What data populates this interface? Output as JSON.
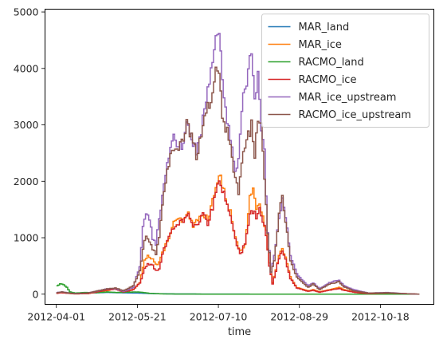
{
  "chart_data": {
    "type": "line",
    "step": true,
    "title": "",
    "xlabel": "time",
    "ylabel": "",
    "x_start": "2012-04-01",
    "x_step_days": 1,
    "xlim": [
      "2012-03-25",
      "2012-11-20"
    ],
    "ylim": [
      -180,
      5050
    ],
    "yticks": [
      0,
      1000,
      2000,
      3000,
      4000,
      5000
    ],
    "xticks": [
      {
        "date": "2012-04-01",
        "label": "2012-04-01"
      },
      {
        "date": "2012-05-21",
        "label": "2012-05-21"
      },
      {
        "date": "2012-07-10",
        "label": "2012-07-10"
      },
      {
        "date": "2012-08-29",
        "label": "2012-08-29"
      },
      {
        "date": "2012-10-18",
        "label": "2012-10-18"
      }
    ],
    "legend_position": "top-right",
    "grid": false,
    "series": [
      {
        "name": "MAR_land",
        "color": "#1f77b4",
        "knots": [
          [
            "2012-04-01",
            20
          ],
          [
            "2012-04-04",
            40
          ],
          [
            "2012-04-07",
            25
          ],
          [
            "2012-04-11",
            15
          ],
          [
            "2012-04-20",
            20
          ],
          [
            "2012-05-01",
            30
          ],
          [
            "2012-05-10",
            25
          ],
          [
            "2012-05-20",
            20
          ],
          [
            "2012-05-30",
            10
          ],
          [
            "2012-06-10",
            5
          ],
          [
            "2012-07-01",
            2
          ],
          [
            "2012-08-01",
            1
          ],
          [
            "2012-09-01",
            1
          ],
          [
            "2012-10-01",
            0
          ],
          [
            "2012-11-10",
            0
          ]
        ]
      },
      {
        "name": "MAR_ice",
        "color": "#ff7f0e",
        "knots": [
          [
            "2012-04-01",
            20
          ],
          [
            "2012-04-03",
            30
          ],
          [
            "2012-04-08",
            15
          ],
          [
            "2012-04-12",
            5
          ],
          [
            "2012-04-20",
            10
          ],
          [
            "2012-05-01",
            60
          ],
          [
            "2012-05-07",
            90
          ],
          [
            "2012-05-12",
            40
          ],
          [
            "2012-05-18",
            80
          ],
          [
            "2012-05-22",
            200
          ],
          [
            "2012-05-25",
            600
          ],
          [
            "2012-05-27",
            700
          ],
          [
            "2012-05-30",
            620
          ],
          [
            "2012-06-01",
            520
          ],
          [
            "2012-06-03",
            560
          ],
          [
            "2012-06-06",
            800
          ],
          [
            "2012-06-09",
            1000
          ],
          [
            "2012-06-12",
            1250
          ],
          [
            "2012-06-15",
            1320
          ],
          [
            "2012-06-18",
            1300
          ],
          [
            "2012-06-21",
            1420
          ],
          [
            "2012-06-24",
            1230
          ],
          [
            "2012-06-27",
            1300
          ],
          [
            "2012-06-30",
            1450
          ],
          [
            "2012-07-03",
            1300
          ],
          [
            "2012-07-06",
            1650
          ],
          [
            "2012-07-09",
            2000
          ],
          [
            "2012-07-11",
            2060
          ],
          [
            "2012-07-14",
            1750
          ],
          [
            "2012-07-17",
            1450
          ],
          [
            "2012-07-20",
            1000
          ],
          [
            "2012-07-23",
            750
          ],
          [
            "2012-07-26",
            900
          ],
          [
            "2012-07-29",
            1750
          ],
          [
            "2012-07-31",
            1830
          ],
          [
            "2012-08-02",
            1450
          ],
          [
            "2012-08-04",
            1600
          ],
          [
            "2012-08-06",
            1350
          ],
          [
            "2012-08-08",
            1100
          ],
          [
            "2012-08-10",
            550
          ],
          [
            "2012-08-12",
            200
          ],
          [
            "2012-08-16",
            700
          ],
          [
            "2012-08-18",
            800
          ],
          [
            "2012-08-20",
            650
          ],
          [
            "2012-08-23",
            300
          ],
          [
            "2012-08-27",
            120
          ],
          [
            "2012-09-03",
            60
          ],
          [
            "2012-09-06",
            80
          ],
          [
            "2012-09-10",
            40
          ],
          [
            "2012-09-16",
            80
          ],
          [
            "2012-09-22",
            120
          ],
          [
            "2012-09-25",
            80
          ],
          [
            "2012-10-01",
            40
          ],
          [
            "2012-10-10",
            10
          ],
          [
            "2012-10-22",
            20
          ],
          [
            "2012-11-01",
            10
          ],
          [
            "2012-11-10",
            0
          ]
        ]
      },
      {
        "name": "RACMO_land",
        "color": "#2ca02c",
        "knots": [
          [
            "2012-04-01",
            150
          ],
          [
            "2012-04-03",
            180
          ],
          [
            "2012-04-05",
            170
          ],
          [
            "2012-04-07",
            120
          ],
          [
            "2012-04-09",
            40
          ],
          [
            "2012-04-12",
            20
          ],
          [
            "2012-04-18",
            30
          ],
          [
            "2012-04-25",
            25
          ],
          [
            "2012-05-02",
            40
          ],
          [
            "2012-05-08",
            30
          ],
          [
            "2012-05-14",
            35
          ],
          [
            "2012-05-21",
            40
          ],
          [
            "2012-05-28",
            15
          ],
          [
            "2012-06-05",
            5
          ],
          [
            "2012-06-15",
            2
          ],
          [
            "2012-07-01",
            1
          ],
          [
            "2012-08-01",
            1
          ],
          [
            "2012-09-01",
            0
          ],
          [
            "2012-10-01",
            0
          ],
          [
            "2012-11-10",
            0
          ]
        ]
      },
      {
        "name": "RACMO_ice",
        "color": "#d62728",
        "knots": [
          [
            "2012-04-01",
            15
          ],
          [
            "2012-04-03",
            25
          ],
          [
            "2012-04-08",
            15
          ],
          [
            "2012-04-12",
            5
          ],
          [
            "2012-04-20",
            10
          ],
          [
            "2012-05-01",
            70
          ],
          [
            "2012-05-07",
            90
          ],
          [
            "2012-05-12",
            40
          ],
          [
            "2012-05-18",
            80
          ],
          [
            "2012-05-22",
            200
          ],
          [
            "2012-05-25",
            450
          ],
          [
            "2012-05-27",
            550
          ],
          [
            "2012-05-30",
            500
          ],
          [
            "2012-06-01",
            420
          ],
          [
            "2012-06-03",
            460
          ],
          [
            "2012-06-06",
            800
          ],
          [
            "2012-06-09",
            1000
          ],
          [
            "2012-06-12",
            1200
          ],
          [
            "2012-06-15",
            1270
          ],
          [
            "2012-06-18",
            1280
          ],
          [
            "2012-06-21",
            1400
          ],
          [
            "2012-06-24",
            1180
          ],
          [
            "2012-06-27",
            1250
          ],
          [
            "2012-06-30",
            1400
          ],
          [
            "2012-07-03",
            1250
          ],
          [
            "2012-07-06",
            1550
          ],
          [
            "2012-07-09",
            1900
          ],
          [
            "2012-07-11",
            1960
          ],
          [
            "2012-07-14",
            1700
          ],
          [
            "2012-07-17",
            1400
          ],
          [
            "2012-07-20",
            960
          ],
          [
            "2012-07-23",
            700
          ],
          [
            "2012-07-26",
            900
          ],
          [
            "2012-07-29",
            1450
          ],
          [
            "2012-07-31",
            1480
          ],
          [
            "2012-08-02",
            1350
          ],
          [
            "2012-08-04",
            1480
          ],
          [
            "2012-08-06",
            1300
          ],
          [
            "2012-08-08",
            1050
          ],
          [
            "2012-08-10",
            500
          ],
          [
            "2012-08-12",
            180
          ],
          [
            "2012-08-16",
            650
          ],
          [
            "2012-08-18",
            760
          ],
          [
            "2012-08-20",
            600
          ],
          [
            "2012-08-23",
            280
          ],
          [
            "2012-08-27",
            110
          ],
          [
            "2012-09-03",
            50
          ],
          [
            "2012-09-06",
            70
          ],
          [
            "2012-09-10",
            35
          ],
          [
            "2012-09-16",
            70
          ],
          [
            "2012-09-22",
            100
          ],
          [
            "2012-09-25",
            70
          ],
          [
            "2012-10-01",
            35
          ],
          [
            "2012-10-10",
            10
          ],
          [
            "2012-10-22",
            20
          ],
          [
            "2012-11-01",
            10
          ],
          [
            "2012-11-10",
            0
          ]
        ]
      },
      {
        "name": "MAR_ice_upstream",
        "color": "#9467bd",
        "knots": [
          [
            "2012-04-01",
            30
          ],
          [
            "2012-04-04",
            40
          ],
          [
            "2012-04-08",
            20
          ],
          [
            "2012-04-12",
            10
          ],
          [
            "2012-04-20",
            20
          ],
          [
            "2012-05-01",
            90
          ],
          [
            "2012-05-07",
            100
          ],
          [
            "2012-05-12",
            50
          ],
          [
            "2012-05-18",
            120
          ],
          [
            "2012-05-22",
            500
          ],
          [
            "2012-05-24",
            1200
          ],
          [
            "2012-05-26",
            1400
          ],
          [
            "2012-05-28",
            1350
          ],
          [
            "2012-05-30",
            1000
          ],
          [
            "2012-06-01",
            900
          ],
          [
            "2012-06-03",
            1300
          ],
          [
            "2012-06-06",
            2000
          ],
          [
            "2012-06-09",
            2400
          ],
          [
            "2012-06-12",
            2800
          ],
          [
            "2012-06-14",
            2700
          ],
          [
            "2012-06-17",
            2600
          ],
          [
            "2012-06-20",
            3000
          ],
          [
            "2012-06-23",
            2800
          ],
          [
            "2012-06-26",
            2500
          ],
          [
            "2012-06-29",
            2900
          ],
          [
            "2012-07-02",
            3500
          ],
          [
            "2012-07-05",
            4000
          ],
          [
            "2012-07-08",
            4700
          ],
          [
            "2012-07-10",
            4800
          ],
          [
            "2012-07-12",
            3800
          ],
          [
            "2012-07-15",
            3000
          ],
          [
            "2012-07-18",
            2700
          ],
          [
            "2012-07-20",
            2200
          ],
          [
            "2012-07-22",
            2400
          ],
          [
            "2012-07-25",
            3500
          ],
          [
            "2012-07-28",
            4000
          ],
          [
            "2012-07-30",
            4350
          ],
          [
            "2012-08-01",
            3600
          ],
          [
            "2012-08-03",
            3800
          ],
          [
            "2012-08-05",
            3000
          ],
          [
            "2012-08-07",
            2500
          ],
          [
            "2012-08-09",
            1100
          ],
          [
            "2012-08-11",
            400
          ],
          [
            "2012-08-13",
            700
          ],
          [
            "2012-08-16",
            1300
          ],
          [
            "2012-08-18",
            1700
          ],
          [
            "2012-08-20",
            1400
          ],
          [
            "2012-08-23",
            700
          ],
          [
            "2012-08-27",
            350
          ],
          [
            "2012-09-03",
            150
          ],
          [
            "2012-09-06",
            200
          ],
          [
            "2012-09-10",
            100
          ],
          [
            "2012-09-16",
            200
          ],
          [
            "2012-09-22",
            250
          ],
          [
            "2012-09-25",
            150
          ],
          [
            "2012-10-01",
            80
          ],
          [
            "2012-10-10",
            20
          ],
          [
            "2012-10-22",
            30
          ],
          [
            "2012-11-01",
            10
          ],
          [
            "2012-11-10",
            0
          ]
        ]
      },
      {
        "name": "RACMO_ice_upstream",
        "color": "#8c564b",
        "knots": [
          [
            "2012-04-01",
            25
          ],
          [
            "2012-04-04",
            40
          ],
          [
            "2012-04-08",
            20
          ],
          [
            "2012-04-12",
            10
          ],
          [
            "2012-04-20",
            20
          ],
          [
            "2012-05-01",
            90
          ],
          [
            "2012-05-07",
            110
          ],
          [
            "2012-05-12",
            60
          ],
          [
            "2012-05-18",
            150
          ],
          [
            "2012-05-22",
            400
          ],
          [
            "2012-05-24",
            800
          ],
          [
            "2012-05-26",
            1050
          ],
          [
            "2012-05-28",
            950
          ],
          [
            "2012-05-30",
            800
          ],
          [
            "2012-06-01",
            700
          ],
          [
            "2012-06-03",
            1000
          ],
          [
            "2012-06-06",
            1800
          ],
          [
            "2012-06-09",
            2300
          ],
          [
            "2012-06-12",
            2600
          ],
          [
            "2012-06-14",
            2500
          ],
          [
            "2012-06-17",
            2700
          ],
          [
            "2012-06-20",
            3050
          ],
          [
            "2012-06-23",
            2800
          ],
          [
            "2012-06-26",
            2450
          ],
          [
            "2012-06-29",
            2800
          ],
          [
            "2012-07-02",
            3200
          ],
          [
            "2012-07-05",
            3500
          ],
          [
            "2012-07-08",
            3950
          ],
          [
            "2012-07-10",
            4050
          ],
          [
            "2012-07-12",
            3000
          ],
          [
            "2012-07-15",
            2900
          ],
          [
            "2012-07-18",
            2400
          ],
          [
            "2012-07-20",
            2000
          ],
          [
            "2012-07-22",
            1800
          ],
          [
            "2012-07-25",
            2500
          ],
          [
            "2012-07-28",
            2800
          ],
          [
            "2012-07-30",
            3000
          ],
          [
            "2012-08-01",
            2500
          ],
          [
            "2012-08-03",
            3100
          ],
          [
            "2012-08-05",
            3000
          ],
          [
            "2012-08-07",
            2000
          ],
          [
            "2012-08-09",
            1100
          ],
          [
            "2012-08-11",
            400
          ],
          [
            "2012-08-13",
            600
          ],
          [
            "2012-08-16",
            1400
          ],
          [
            "2012-08-18",
            1750
          ],
          [
            "2012-08-20",
            1300
          ],
          [
            "2012-08-23",
            600
          ],
          [
            "2012-08-27",
            300
          ],
          [
            "2012-09-03",
            120
          ],
          [
            "2012-09-06",
            180
          ],
          [
            "2012-09-10",
            80
          ],
          [
            "2012-09-16",
            180
          ],
          [
            "2012-09-22",
            220
          ],
          [
            "2012-09-25",
            130
          ],
          [
            "2012-10-01",
            60
          ],
          [
            "2012-10-10",
            20
          ],
          [
            "2012-10-22",
            25
          ],
          [
            "2012-11-01",
            10
          ],
          [
            "2012-11-10",
            0
          ]
        ]
      }
    ]
  }
}
